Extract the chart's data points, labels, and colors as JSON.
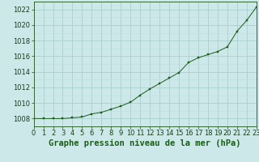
{
  "title": "Graphe pression niveau de la mer (hPa)",
  "x_values": [
    0,
    1,
    2,
    3,
    4,
    5,
    6,
    7,
    8,
    9,
    10,
    11,
    12,
    13,
    14,
    15,
    16,
    17,
    18,
    19,
    20,
    21,
    22,
    23
  ],
  "y_values": [
    1008.0,
    1008.0,
    1008.0,
    1008.0,
    1008.1,
    1008.2,
    1008.6,
    1008.8,
    1009.2,
    1009.6,
    1010.1,
    1011.0,
    1011.8,
    1012.5,
    1013.2,
    1013.9,
    1015.2,
    1015.8,
    1016.2,
    1016.6,
    1017.2,
    1019.2,
    1020.6,
    1022.3
  ],
  "line_color": "#1a5c1a",
  "marker_color": "#1a5c1a",
  "background_color": "#cce8e8",
  "grid_major_color": "#aacfcf",
  "grid_minor_color": "#bddede",
  "axis_color": "#336633",
  "xlim": [
    0,
    23
  ],
  "ylim": [
    1007,
    1023
  ],
  "yticks_major": [
    1008,
    1010,
    1012,
    1014,
    1016,
    1018,
    1020,
    1022
  ],
  "yticks_minor": [
    1007,
    1008,
    1009,
    1010,
    1011,
    1012,
    1013,
    1014,
    1015,
    1016,
    1017,
    1018,
    1019,
    1020,
    1021,
    1022,
    1023
  ],
  "xticks": [
    0,
    1,
    2,
    3,
    4,
    5,
    6,
    7,
    8,
    9,
    10,
    11,
    12,
    13,
    14,
    15,
    16,
    17,
    18,
    19,
    20,
    21,
    22,
    23
  ],
  "title_fontsize": 7.5,
  "tick_fontsize": 6,
  "figsize": [
    3.2,
    2.0
  ],
  "dpi": 100
}
